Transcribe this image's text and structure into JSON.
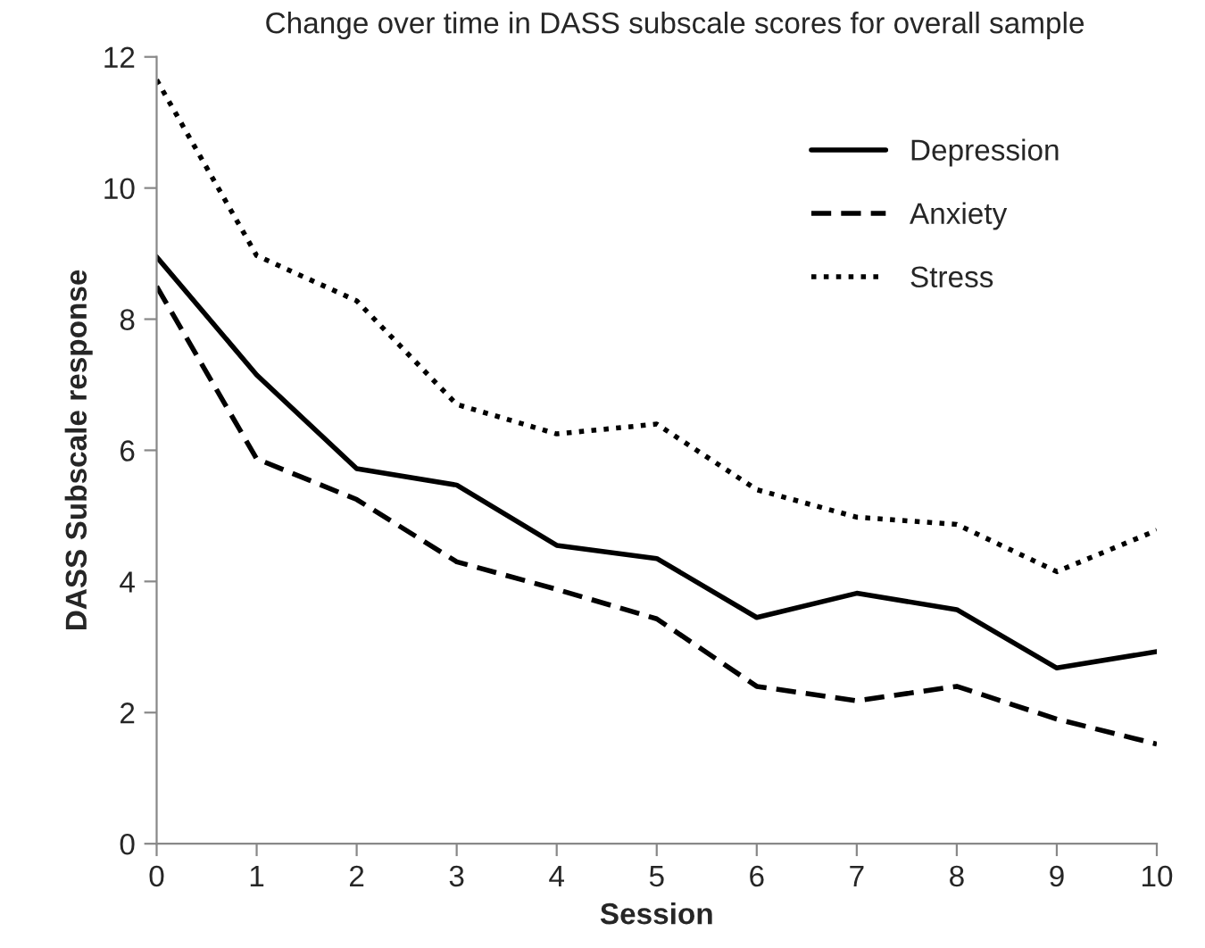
{
  "chart_data": {
    "type": "line",
    "title": "Change over time in DASS subscale scores for overall sample",
    "xlabel": "Session",
    "ylabel": "DASS Subscale response",
    "x": [
      0,
      1,
      2,
      3,
      4,
      5,
      6,
      7,
      8,
      9,
      10
    ],
    "series": [
      {
        "name": "Depression",
        "color": "#000000",
        "line_style": "solid",
        "values": [
          8.95,
          7.15,
          5.72,
          5.47,
          4.55,
          4.35,
          3.45,
          3.82,
          3.57,
          2.68,
          2.93
        ]
      },
      {
        "name": "Anxiety",
        "color": "#000000",
        "line_style": "dashed",
        "values": [
          8.5,
          5.87,
          5.25,
          4.3,
          3.88,
          3.43,
          2.4,
          2.18,
          2.4,
          1.9,
          1.52
        ]
      },
      {
        "name": "Stress",
        "color": "#000000",
        "line_style": "dotted",
        "values": [
          11.65,
          8.97,
          8.28,
          6.7,
          6.25,
          6.4,
          5.4,
          4.98,
          4.87,
          4.15,
          4.78
        ]
      }
    ],
    "xlim": [
      0,
      10
    ],
    "xticks": [
      0,
      1,
      2,
      3,
      4,
      5,
      6,
      7,
      8,
      9,
      10
    ],
    "ylim": [
      0,
      12
    ],
    "yticks": [
      0,
      2,
      4,
      6,
      8,
      10,
      12
    ],
    "grid": false,
    "legend": "top right",
    "marker": "none"
  }
}
